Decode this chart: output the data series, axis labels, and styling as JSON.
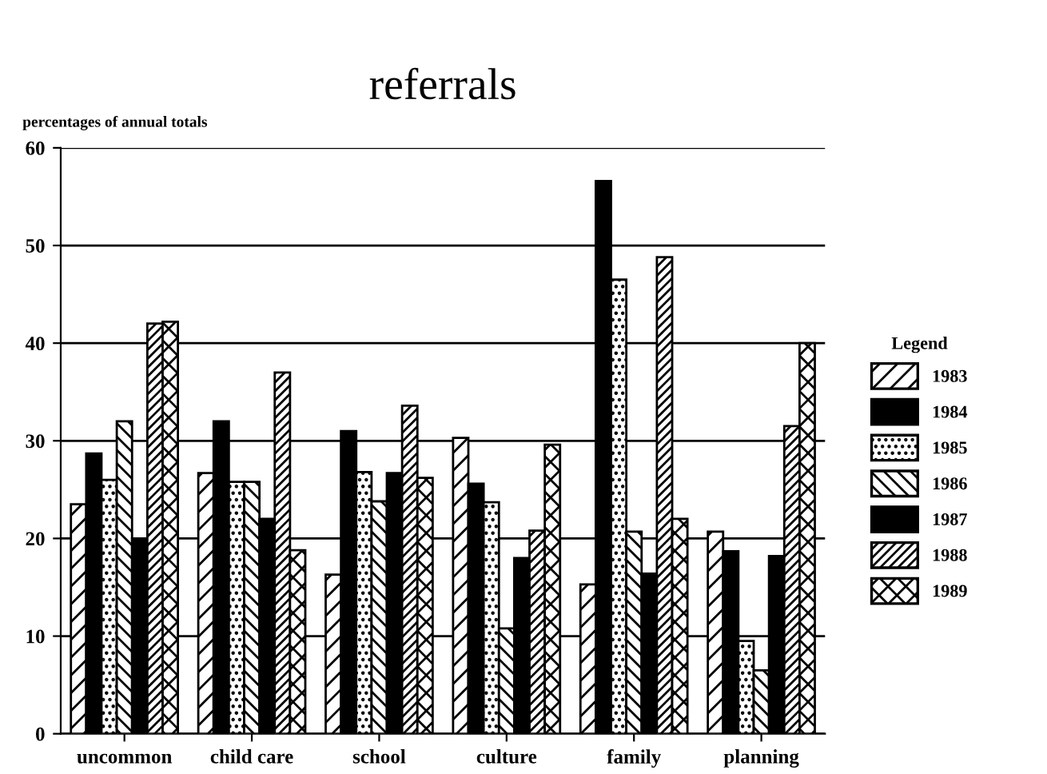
{
  "chart_data": {
    "type": "bar",
    "title": "referrals",
    "ylabel": "percentages of annual totals",
    "legend_title": "Legend",
    "categories": [
      "uncommon",
      "child care",
      "school",
      "culture",
      "family",
      "planning"
    ],
    "series": [
      {
        "name": "1983",
        "color": "#000000",
        "values": [
          23.5,
          26.7,
          16.3,
          30.3,
          15.3,
          20.7
        ]
      },
      {
        "name": "1984",
        "color": "#000000",
        "values": [
          28.7,
          32,
          31,
          25.6,
          56.6,
          18.7
        ]
      },
      {
        "name": "1985",
        "color": "#000000",
        "values": [
          26,
          25.8,
          26.8,
          23.7,
          46.5,
          9.5
        ]
      },
      {
        "name": "1986",
        "color": "#000000",
        "values": [
          32,
          25.8,
          23.8,
          10.8,
          20.7,
          6.5
        ]
      },
      {
        "name": "1987",
        "color": "#000000",
        "values": [
          20,
          22,
          26.7,
          18,
          16.4,
          18.2
        ]
      },
      {
        "name": "1988",
        "color": "#000000",
        "values": [
          42,
          37,
          33.6,
          20.8,
          48.8,
          31.5
        ]
      },
      {
        "name": "1989",
        "color": "#000000",
        "values": [
          42.2,
          18.8,
          26.2,
          29.6,
          22,
          40
        ]
      }
    ],
    "ylim": [
      0,
      60
    ],
    "yticks": [
      0,
      10,
      20,
      30,
      40,
      50,
      60
    ],
    "grid": "y",
    "legend": "right"
  }
}
